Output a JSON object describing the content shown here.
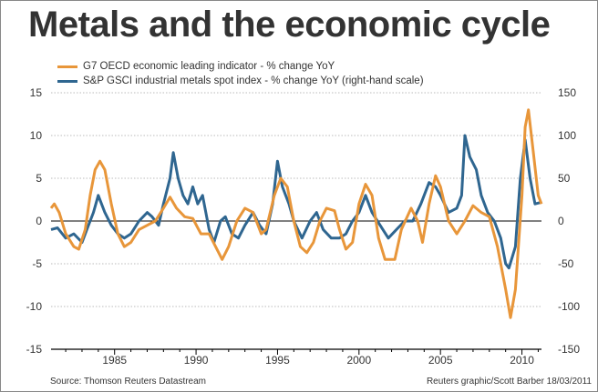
{
  "chart_data": {
    "type": "line",
    "title": "Metals and the economic cycle",
    "x_ticks": [
      1985,
      1990,
      1995,
      2000,
      2005,
      2010
    ],
    "xlim": [
      1981.1,
      2011.2
    ],
    "left_axis": {
      "ylim": [
        -15,
        15
      ],
      "ticks": [
        15,
        10,
        5,
        0,
        -5,
        -10,
        -15
      ]
    },
    "right_axis": {
      "ylim": [
        -150,
        150
      ],
      "ticks": [
        150,
        100,
        50,
        0,
        -50,
        -100,
        -150
      ]
    },
    "grid": true,
    "legend_placement": "top-left",
    "series": [
      {
        "name": "G7 OECD economic leading indicator - % change YoY",
        "axis": "left",
        "color": "#E8963A",
        "points": [
          [
            1981.1,
            1.5
          ],
          [
            1981.3,
            2
          ],
          [
            1981.6,
            1
          ],
          [
            1982,
            -1.5
          ],
          [
            1982.5,
            -3
          ],
          [
            1982.8,
            -3.3
          ],
          [
            1983.2,
            -1
          ],
          [
            1983.5,
            3
          ],
          [
            1983.8,
            6
          ],
          [
            1984.1,
            7
          ],
          [
            1984.4,
            6
          ],
          [
            1984.8,
            2
          ],
          [
            1985.2,
            -1.5
          ],
          [
            1985.6,
            -3
          ],
          [
            1986,
            -2.5
          ],
          [
            1986.5,
            -1
          ],
          [
            1987,
            -0.5
          ],
          [
            1987.5,
            0
          ],
          [
            1988,
            1.5
          ],
          [
            1988.4,
            2.8
          ],
          [
            1988.8,
            1.5
          ],
          [
            1989.3,
            0.5
          ],
          [
            1989.8,
            0.3
          ],
          [
            1990.3,
            -1.5
          ],
          [
            1990.8,
            -1.5
          ],
          [
            1991.2,
            -3
          ],
          [
            1991.6,
            -4.5
          ],
          [
            1992,
            -3
          ],
          [
            1992.5,
            0
          ],
          [
            1993,
            1.5
          ],
          [
            1993.5,
            1
          ],
          [
            1994,
            -1.5
          ],
          [
            1994.3,
            -1
          ],
          [
            1994.8,
            3
          ],
          [
            1995.2,
            5
          ],
          [
            1995.6,
            4
          ],
          [
            1996,
            0
          ],
          [
            1996.4,
            -3
          ],
          [
            1996.8,
            -3.7
          ],
          [
            1997.2,
            -2.5
          ],
          [
            1997.6,
            0
          ],
          [
            1998,
            1.5
          ],
          [
            1998.5,
            1.2
          ],
          [
            1998.8,
            -1
          ],
          [
            1999.2,
            -3.3
          ],
          [
            1999.6,
            -2.5
          ],
          [
            2000,
            2
          ],
          [
            2000.4,
            4.3
          ],
          [
            2000.8,
            3
          ],
          [
            2001.2,
            -2
          ],
          [
            2001.6,
            -4.5
          ],
          [
            2002.2,
            -4.5
          ],
          [
            2002.6,
            -1
          ],
          [
            2003.2,
            1.5
          ],
          [
            2003.6,
            0
          ],
          [
            2003.9,
            -2.5
          ],
          [
            2004.3,
            2
          ],
          [
            2004.7,
            5.3
          ],
          [
            2005,
            4
          ],
          [
            2005.5,
            0
          ],
          [
            2006,
            -1.5
          ],
          [
            2006.5,
            0
          ],
          [
            2007,
            1.8
          ],
          [
            2007.5,
            1
          ],
          [
            2008,
            0.5
          ],
          [
            2008.5,
            -3
          ],
          [
            2009,
            -8
          ],
          [
            2009.3,
            -11.3
          ],
          [
            2009.6,
            -8
          ],
          [
            2010,
            3
          ],
          [
            2010.2,
            11
          ],
          [
            2010.4,
            13
          ],
          [
            2010.7,
            8
          ],
          [
            2011,
            3
          ],
          [
            2011.2,
            2
          ]
        ]
      },
      {
        "name": "S&P GSCI industrial metals spot index - % change YoY (right-hand scale)",
        "axis": "right",
        "color": "#2F6690",
        "points": [
          [
            1981.1,
            -10
          ],
          [
            1981.5,
            -8
          ],
          [
            1982,
            -20
          ],
          [
            1982.5,
            -15
          ],
          [
            1983,
            -25
          ],
          [
            1983.3,
            -10
          ],
          [
            1983.7,
            10
          ],
          [
            1984,
            30
          ],
          [
            1984.4,
            10
          ],
          [
            1984.8,
            -5
          ],
          [
            1985.2,
            -15
          ],
          [
            1985.6,
            -20
          ],
          [
            1986,
            -15
          ],
          [
            1986.5,
            0
          ],
          [
            1987,
            10
          ],
          [
            1987.3,
            5
          ],
          [
            1987.7,
            -5
          ],
          [
            1988,
            20
          ],
          [
            1988.4,
            50
          ],
          [
            1988.6,
            80
          ],
          [
            1988.9,
            50
          ],
          [
            1989.2,
            30
          ],
          [
            1989.5,
            20
          ],
          [
            1989.8,
            40
          ],
          [
            1990.1,
            20
          ],
          [
            1990.4,
            30
          ],
          [
            1990.8,
            -10
          ],
          [
            1991.1,
            -25
          ],
          [
            1991.5,
            0
          ],
          [
            1991.8,
            5
          ],
          [
            1992.2,
            -15
          ],
          [
            1992.6,
            -20
          ],
          [
            1993,
            -5
          ],
          [
            1993.5,
            10
          ],
          [
            1993.9,
            -5
          ],
          [
            1994.3,
            -15
          ],
          [
            1994.7,
            20
          ],
          [
            1995,
            70
          ],
          [
            1995.3,
            40
          ],
          [
            1995.7,
            20
          ],
          [
            1996,
            0
          ],
          [
            1996.5,
            -20
          ],
          [
            1997,
            0
          ],
          [
            1997.4,
            10
          ],
          [
            1997.8,
            -10
          ],
          [
            1998.3,
            -20
          ],
          [
            1998.8,
            -20
          ],
          [
            1999.2,
            -15
          ],
          [
            1999.6,
            0
          ],
          [
            2000,
            10
          ],
          [
            2000.4,
            30
          ],
          [
            2000.8,
            10
          ],
          [
            2001.3,
            -5
          ],
          [
            2001.8,
            -20
          ],
          [
            2002.3,
            -10
          ],
          [
            2002.8,
            0
          ],
          [
            2003.3,
            0
          ],
          [
            2003.8,
            20
          ],
          [
            2004.3,
            45
          ],
          [
            2004.7,
            40
          ],
          [
            2005,
            30
          ],
          [
            2005.5,
            10
          ],
          [
            2006,
            15
          ],
          [
            2006.3,
            30
          ],
          [
            2006.5,
            100
          ],
          [
            2006.8,
            75
          ],
          [
            2007.2,
            60
          ],
          [
            2007.5,
            30
          ],
          [
            2007.9,
            10
          ],
          [
            2008.3,
            0
          ],
          [
            2008.7,
            -20
          ],
          [
            2009,
            -50
          ],
          [
            2009.2,
            -55
          ],
          [
            2009.6,
            -30
          ],
          [
            2009.9,
            50
          ],
          [
            2010.2,
            95
          ],
          [
            2010.5,
            50
          ],
          [
            2010.8,
            20
          ],
          [
            2011.2,
            22
          ]
        ]
      }
    ]
  },
  "footer": {
    "source": "Source: Thomson Reuters Datastream",
    "credit": "Reuters graphic/Scott Barber 18/03/2011"
  }
}
